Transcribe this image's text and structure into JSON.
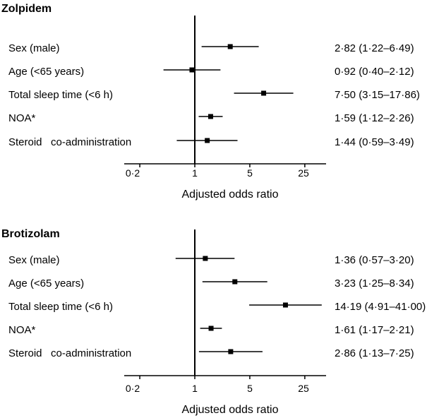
{
  "chart_data": [
    {
      "type": "forest",
      "title": "Zolpidem",
      "xlabel": "Adjusted odds ratio",
      "x_scale": "log",
      "reference_line": 1,
      "xticks": [
        {
          "value": 0.2,
          "label": "0·2"
        },
        {
          "value": 1,
          "label": "1"
        },
        {
          "value": 5,
          "label": "5"
        },
        {
          "value": 25,
          "label": "25"
        }
      ],
      "xlim": [
        0.13,
        45
      ],
      "rows": [
        {
          "label": "Sex (male)",
          "or": 2.82,
          "lo": 1.22,
          "hi": 6.49,
          "ci_text": "2·82 (1·22–6·49)"
        },
        {
          "label": "Age (<65 years)",
          "or": 0.92,
          "lo": 0.4,
          "hi": 2.12,
          "ci_text": "0·92 (0·40–2·12)"
        },
        {
          "label": "Total sleep time (<6 h)",
          "or": 7.5,
          "lo": 3.15,
          "hi": 17.86,
          "ci_text": "7·50 (3·15–17·86)"
        },
        {
          "label": "NOA*",
          "or": 1.59,
          "lo": 1.12,
          "hi": 2.26,
          "ci_text": "1·59 (1·12–2·26)"
        },
        {
          "label": "Steroid   co-administration",
          "or": 1.44,
          "lo": 0.59,
          "hi": 3.49,
          "ci_text": "1·44 (0·59–3·49)"
        }
      ]
    },
    {
      "type": "forest",
      "title": "Brotizolam",
      "xlabel": "Adjusted odds ratio",
      "x_scale": "log",
      "reference_line": 1,
      "xticks": [
        {
          "value": 0.2,
          "label": "0·2"
        },
        {
          "value": 1,
          "label": "1"
        },
        {
          "value": 5,
          "label": "5"
        },
        {
          "value": 25,
          "label": "25"
        }
      ],
      "xlim": [
        0.13,
        45
      ],
      "rows": [
        {
          "label": "Sex (male)",
          "or": 1.36,
          "lo": 0.57,
          "hi": 3.2,
          "ci_text": "1·36 (0·57–3·20)"
        },
        {
          "label": "Age (<65 years)",
          "or": 3.23,
          "lo": 1.25,
          "hi": 8.34,
          "ci_text": "3·23 (1·25–8·34)"
        },
        {
          "label": "Total sleep time (<6 h)",
          "or": 14.19,
          "lo": 4.91,
          "hi": 41.0,
          "ci_text": "14·19 (4·91–41·00)"
        },
        {
          "label": "NOA*",
          "or": 1.61,
          "lo": 1.17,
          "hi": 2.21,
          "ci_text": "1·61 (1·17–2·21)"
        },
        {
          "label": "Steroid   co-administration",
          "or": 2.86,
          "lo": 1.13,
          "hi": 7.25,
          "ci_text": "2·86 (1·13–7·25)"
        }
      ]
    }
  ]
}
